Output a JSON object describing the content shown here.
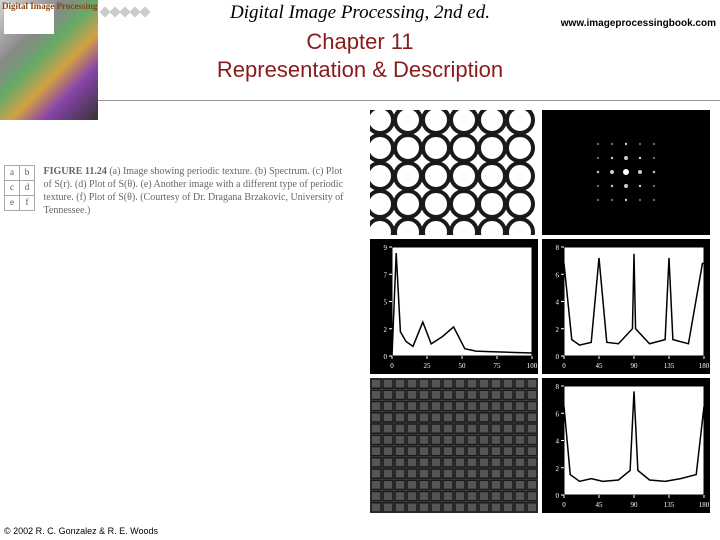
{
  "header": {
    "book_title": "Digital Image Processing, 2nd ed.",
    "url": "www.imageprocessingbook.com",
    "chapter_num": "Chapter 11",
    "chapter_title": "Representation & Description",
    "cover_label": "Digital Image Processing"
  },
  "caption": {
    "grid": [
      [
        "a",
        "b"
      ],
      [
        "c",
        "d"
      ],
      [
        "e",
        "f"
      ]
    ],
    "fignum": "FIGURE 11.24",
    "text": "(a) Image showing periodic texture. (b) Spectrum. (c) Plot of S(r). (d) Plot of S(θ). (e) Another image with a different type of periodic texture. (f) Plot of S(θ). (Courtesy of Dr. Dragana Brzakovic, University of Tennessee.)"
  },
  "figures": {
    "panel_a": {
      "type": "texture-circles",
      "bg": "#ffffff",
      "fg": "#1a1a1a",
      "rows": 5,
      "cols": 6,
      "radius": 13,
      "spacing": 28
    },
    "panel_b": {
      "type": "spectrum",
      "bg": "#000000",
      "dot_color": "#ffffff",
      "grid_n": 5,
      "spacing": 14
    },
    "panel_c": {
      "type": "line-plot",
      "bg": "#ffffff",
      "axis": "#000000",
      "line": "#000000",
      "xlim": [
        0,
        100
      ],
      "ylim": [
        0,
        9
      ],
      "points": [
        [
          0,
          0
        ],
        [
          3,
          8.5
        ],
        [
          6,
          2
        ],
        [
          10,
          1.2
        ],
        [
          15,
          0.8
        ],
        [
          22,
          2.8
        ],
        [
          28,
          1.0
        ],
        [
          36,
          1.6
        ],
        [
          44,
          2.4
        ],
        [
          52,
          0.6
        ],
        [
          60,
          0.4
        ],
        [
          72,
          0.35
        ],
        [
          85,
          0.3
        ],
        [
          100,
          0.25
        ]
      ]
    },
    "panel_d": {
      "type": "line-plot",
      "bg": "#ffffff",
      "axis": "#000000",
      "line": "#000000",
      "xlim": [
        0,
        180
      ],
      "ylim": [
        0,
        8
      ],
      "points": [
        [
          0,
          6.8
        ],
        [
          10,
          1.2
        ],
        [
          20,
          0.8
        ],
        [
          35,
          1.0
        ],
        [
          45,
          7.2
        ],
        [
          55,
          1.0
        ],
        [
          70,
          0.9
        ],
        [
          88,
          2.0
        ],
        [
          90,
          7.5
        ],
        [
          92,
          2.0
        ],
        [
          110,
          0.9
        ],
        [
          130,
          1.2
        ],
        [
          135,
          7.2
        ],
        [
          140,
          1.2
        ],
        [
          160,
          0.9
        ],
        [
          178,
          6.8
        ],
        [
          180,
          6.8
        ]
      ]
    },
    "panel_e": {
      "type": "texture-grid",
      "bg": "#555555",
      "fg": "#1a1a1a",
      "rows": 12,
      "cols": 14
    },
    "panel_f": {
      "type": "line-plot",
      "bg": "#ffffff",
      "axis": "#000000",
      "line": "#000000",
      "xlim": [
        0,
        180
      ],
      "ylim": [
        0,
        8
      ],
      "points": [
        [
          0,
          6.5
        ],
        [
          8,
          1.5
        ],
        [
          20,
          1.0
        ],
        [
          35,
          1.2
        ],
        [
          50,
          1.0
        ],
        [
          70,
          1.1
        ],
        [
          85,
          1.8
        ],
        [
          90,
          7.6
        ],
        [
          95,
          1.8
        ],
        [
          110,
          1.1
        ],
        [
          130,
          1.0
        ],
        [
          150,
          1.2
        ],
        [
          170,
          1.5
        ],
        [
          180,
          6.5
        ]
      ]
    }
  },
  "footer": {
    "copyright": "© 2002 R. C. Gonzalez & R. E. Woods"
  }
}
